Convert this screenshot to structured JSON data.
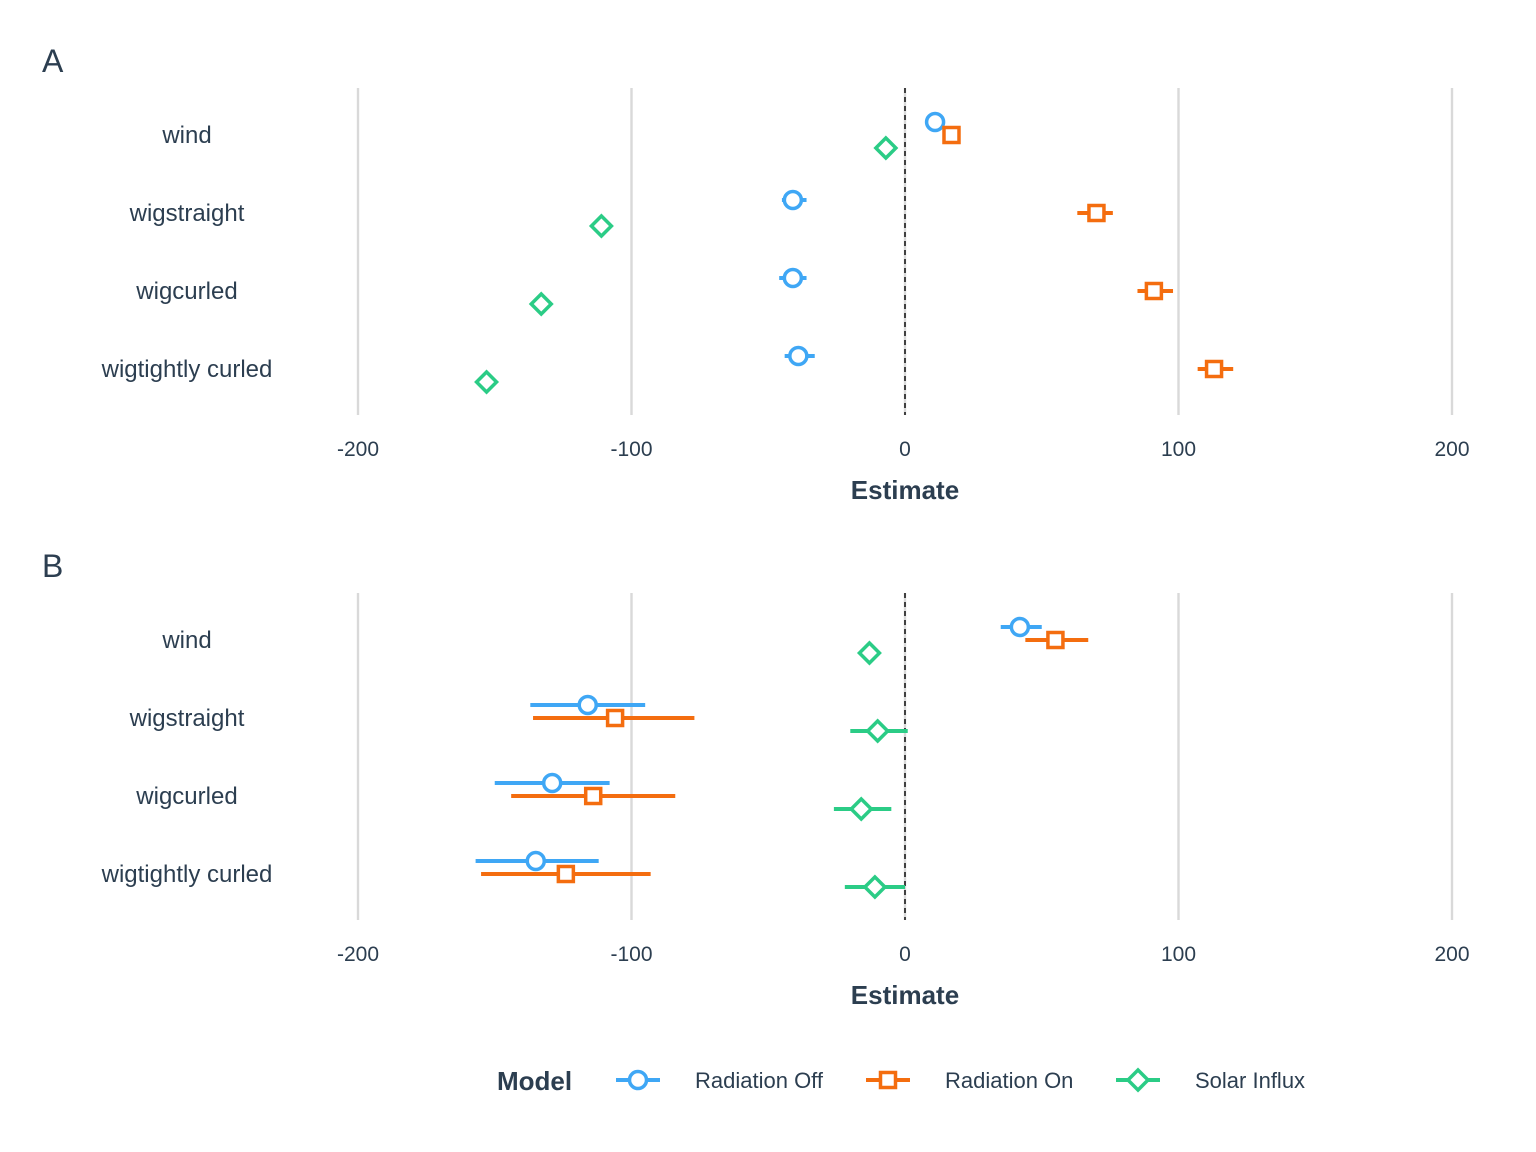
{
  "chart_data": [
    {
      "panel_label": "A",
      "type": "dot-whisker",
      "xlabel": "Estimate",
      "xlim": [
        -200,
        200
      ],
      "xticks": [
        "-200",
        "-100",
        "0",
        "100",
        "200"
      ],
      "tick_values": [
        -200,
        -100,
        0,
        100,
        200
      ],
      "grid": true,
      "reference_line": 0,
      "categories": [
        "wind",
        "wigstraight",
        "wigcurled",
        "wigtightly curled"
      ],
      "series": [
        {
          "name": "Radiation Off",
          "points": [
            {
              "category": "wind",
              "estimate": 11,
              "lo": 10,
              "hi": 12
            },
            {
              "category": "wigstraight",
              "estimate": -41,
              "lo": -45,
              "hi": -36
            },
            {
              "category": "wigcurled",
              "estimate": -41,
              "lo": -46,
              "hi": -36
            },
            {
              "category": "wigtightly curled",
              "estimate": -39,
              "lo": -44,
              "hi": -33
            }
          ]
        },
        {
          "name": "Radiation On",
          "points": [
            {
              "category": "wind",
              "estimate": 17,
              "lo": 16,
              "hi": 18
            },
            {
              "category": "wigstraight",
              "estimate": 70,
              "lo": 63,
              "hi": 76
            },
            {
              "category": "wigcurled",
              "estimate": 91,
              "lo": 85,
              "hi": 98
            },
            {
              "category": "wigtightly curled",
              "estimate": 113,
              "lo": 107,
              "hi": 120
            }
          ]
        },
        {
          "name": "Solar Influx",
          "points": [
            {
              "category": "wind",
              "estimate": -7,
              "lo": -8,
              "hi": -6
            },
            {
              "category": "wigstraight",
              "estimate": -111,
              "lo": -112,
              "hi": -110
            },
            {
              "category": "wigcurled",
              "estimate": -133,
              "lo": -134,
              "hi": -132
            },
            {
              "category": "wigtightly curled",
              "estimate": -153,
              "lo": -154,
              "hi": -152
            }
          ]
        }
      ]
    },
    {
      "panel_label": "B",
      "type": "dot-whisker",
      "xlabel": "Estimate",
      "xlim": [
        -200,
        200
      ],
      "xticks": [
        "-200",
        "-100",
        "0",
        "100",
        "200"
      ],
      "tick_values": [
        -200,
        -100,
        0,
        100,
        200
      ],
      "grid": true,
      "reference_line": 0,
      "categories": [
        "wind",
        "wigstraight",
        "wigcurled",
        "wigtightly curled"
      ],
      "series": [
        {
          "name": "Radiation Off",
          "points": [
            {
              "category": "wind",
              "estimate": 42,
              "lo": 35,
              "hi": 50
            },
            {
              "category": "wigstraight",
              "estimate": -116,
              "lo": -137,
              "hi": -95
            },
            {
              "category": "wigcurled",
              "estimate": -129,
              "lo": -150,
              "hi": -108
            },
            {
              "category": "wigtightly curled",
              "estimate": -135,
              "lo": -157,
              "hi": -112
            }
          ]
        },
        {
          "name": "Radiation On",
          "points": [
            {
              "category": "wind",
              "estimate": 55,
              "lo": 44,
              "hi": 67
            },
            {
              "category": "wigstraight",
              "estimate": -106,
              "lo": -136,
              "hi": -77
            },
            {
              "category": "wigcurled",
              "estimate": -114,
              "lo": -144,
              "hi": -84
            },
            {
              "category": "wigtightly curled",
              "estimate": -124,
              "lo": -155,
              "hi": -93
            }
          ]
        },
        {
          "name": "Solar Influx",
          "points": [
            {
              "category": "wind",
              "estimate": -13,
              "lo": -14,
              "hi": -12
            },
            {
              "category": "wigstraight",
              "estimate": -10,
              "lo": -20,
              "hi": 1
            },
            {
              "category": "wigcurled",
              "estimate": -16,
              "lo": -26,
              "hi": -5
            },
            {
              "category": "wigtightly curled",
              "estimate": -11,
              "lo": -22,
              "hi": 0
            }
          ]
        }
      ]
    }
  ],
  "legend": {
    "title": "Model",
    "position": "bottom",
    "items": [
      {
        "label": "Radiation Off",
        "shape": "circle",
        "color": "#3fa7f5"
      },
      {
        "label": "Radiation On",
        "shape": "square",
        "color": "#f46d0f"
      },
      {
        "label": "Solar Influx",
        "shape": "diamond",
        "color": "#2bcc86"
      }
    ]
  },
  "colors": {
    "text": "#2c3e50",
    "grid": "#d9d9d9",
    "reference_line": "#1a1a1a"
  }
}
